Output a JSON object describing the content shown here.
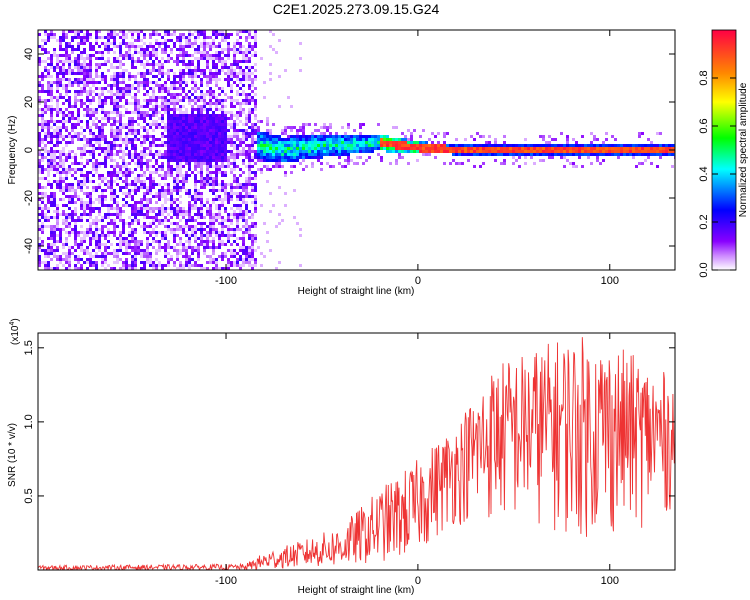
{
  "title": "C2E1.2025.273.09.15.G24",
  "chart_data": [
    {
      "type": "heatmap",
      "name": "spectrogram",
      "xlabel": "Height of straight line (km)",
      "ylabel": "Frequency (Hz)",
      "xlim": [
        -198,
        134
      ],
      "ylim": [
        -50,
        50
      ],
      "xticks": [
        -100,
        0,
        100
      ],
      "yticks": [
        -40,
        -20,
        0,
        20,
        40
      ],
      "colorbar": {
        "label": "Normalized spectral amplitude",
        "range": [
          0,
          1
        ],
        "ticks": [
          "0.0",
          "0.2",
          "0.4",
          "0.6",
          "0.8"
        ],
        "tick_values": [
          0.0,
          0.2,
          0.4,
          0.6,
          0.8
        ],
        "colors": [
          "#ffffff",
          "#cc88ff",
          "#8800ff",
          "#0000ff",
          "#00ffff",
          "#00ff00",
          "#ffff00",
          "#ff8800",
          "#ff0000"
        ]
      },
      "noise_region_end_km": -84,
      "ridge": [
        [
          -84,
          2
        ],
        [
          -70,
          0
        ],
        [
          -60,
          1
        ],
        [
          -40,
          2
        ],
        [
          -20,
          3
        ],
        [
          0,
          1
        ],
        [
          20,
          0
        ],
        [
          60,
          0
        ],
        [
          100,
          0
        ],
        [
          134,
          0
        ]
      ]
    },
    {
      "type": "line",
      "name": "snr",
      "xlabel": "Height of straight line (km)",
      "ylabel": "SNR (10 * v/v)",
      "scale_label": "(x10",
      "scale_exp": "4",
      "scale_close": ")",
      "xlim": [
        -198,
        134
      ],
      "ylim": [
        0,
        1.6
      ],
      "xticks": [
        -100,
        0,
        100
      ],
      "yticks": [
        0.5,
        1.0,
        1.5
      ],
      "ytick_labels": [
        "0.5",
        "1.0",
        "1.5"
      ],
      "color": "#ee3333",
      "envelope": [
        {
          "x": -198,
          "lo": 0.0,
          "hi": 0.03
        },
        {
          "x": -90,
          "lo": 0.0,
          "hi": 0.04
        },
        {
          "x": -80,
          "lo": 0.0,
          "hi": 0.12
        },
        {
          "x": -60,
          "lo": 0.02,
          "hi": 0.2
        },
        {
          "x": -40,
          "lo": 0.02,
          "hi": 0.3
        },
        {
          "x": -20,
          "lo": 0.05,
          "hi": 0.55
        },
        {
          "x": 0,
          "lo": 0.1,
          "hi": 0.75
        },
        {
          "x": 20,
          "lo": 0.3,
          "hi": 1.0
        },
        {
          "x": 40,
          "lo": 0.3,
          "hi": 1.4
        },
        {
          "x": 60,
          "lo": 0.3,
          "hi": 1.5
        },
        {
          "x": 80,
          "lo": 0.2,
          "hi": 1.6
        },
        {
          "x": 100,
          "lo": 0.2,
          "hi": 1.55
        },
        {
          "x": 120,
          "lo": 0.3,
          "hi": 1.4
        },
        {
          "x": 134,
          "lo": 0.4,
          "hi": 1.3
        }
      ]
    }
  ]
}
